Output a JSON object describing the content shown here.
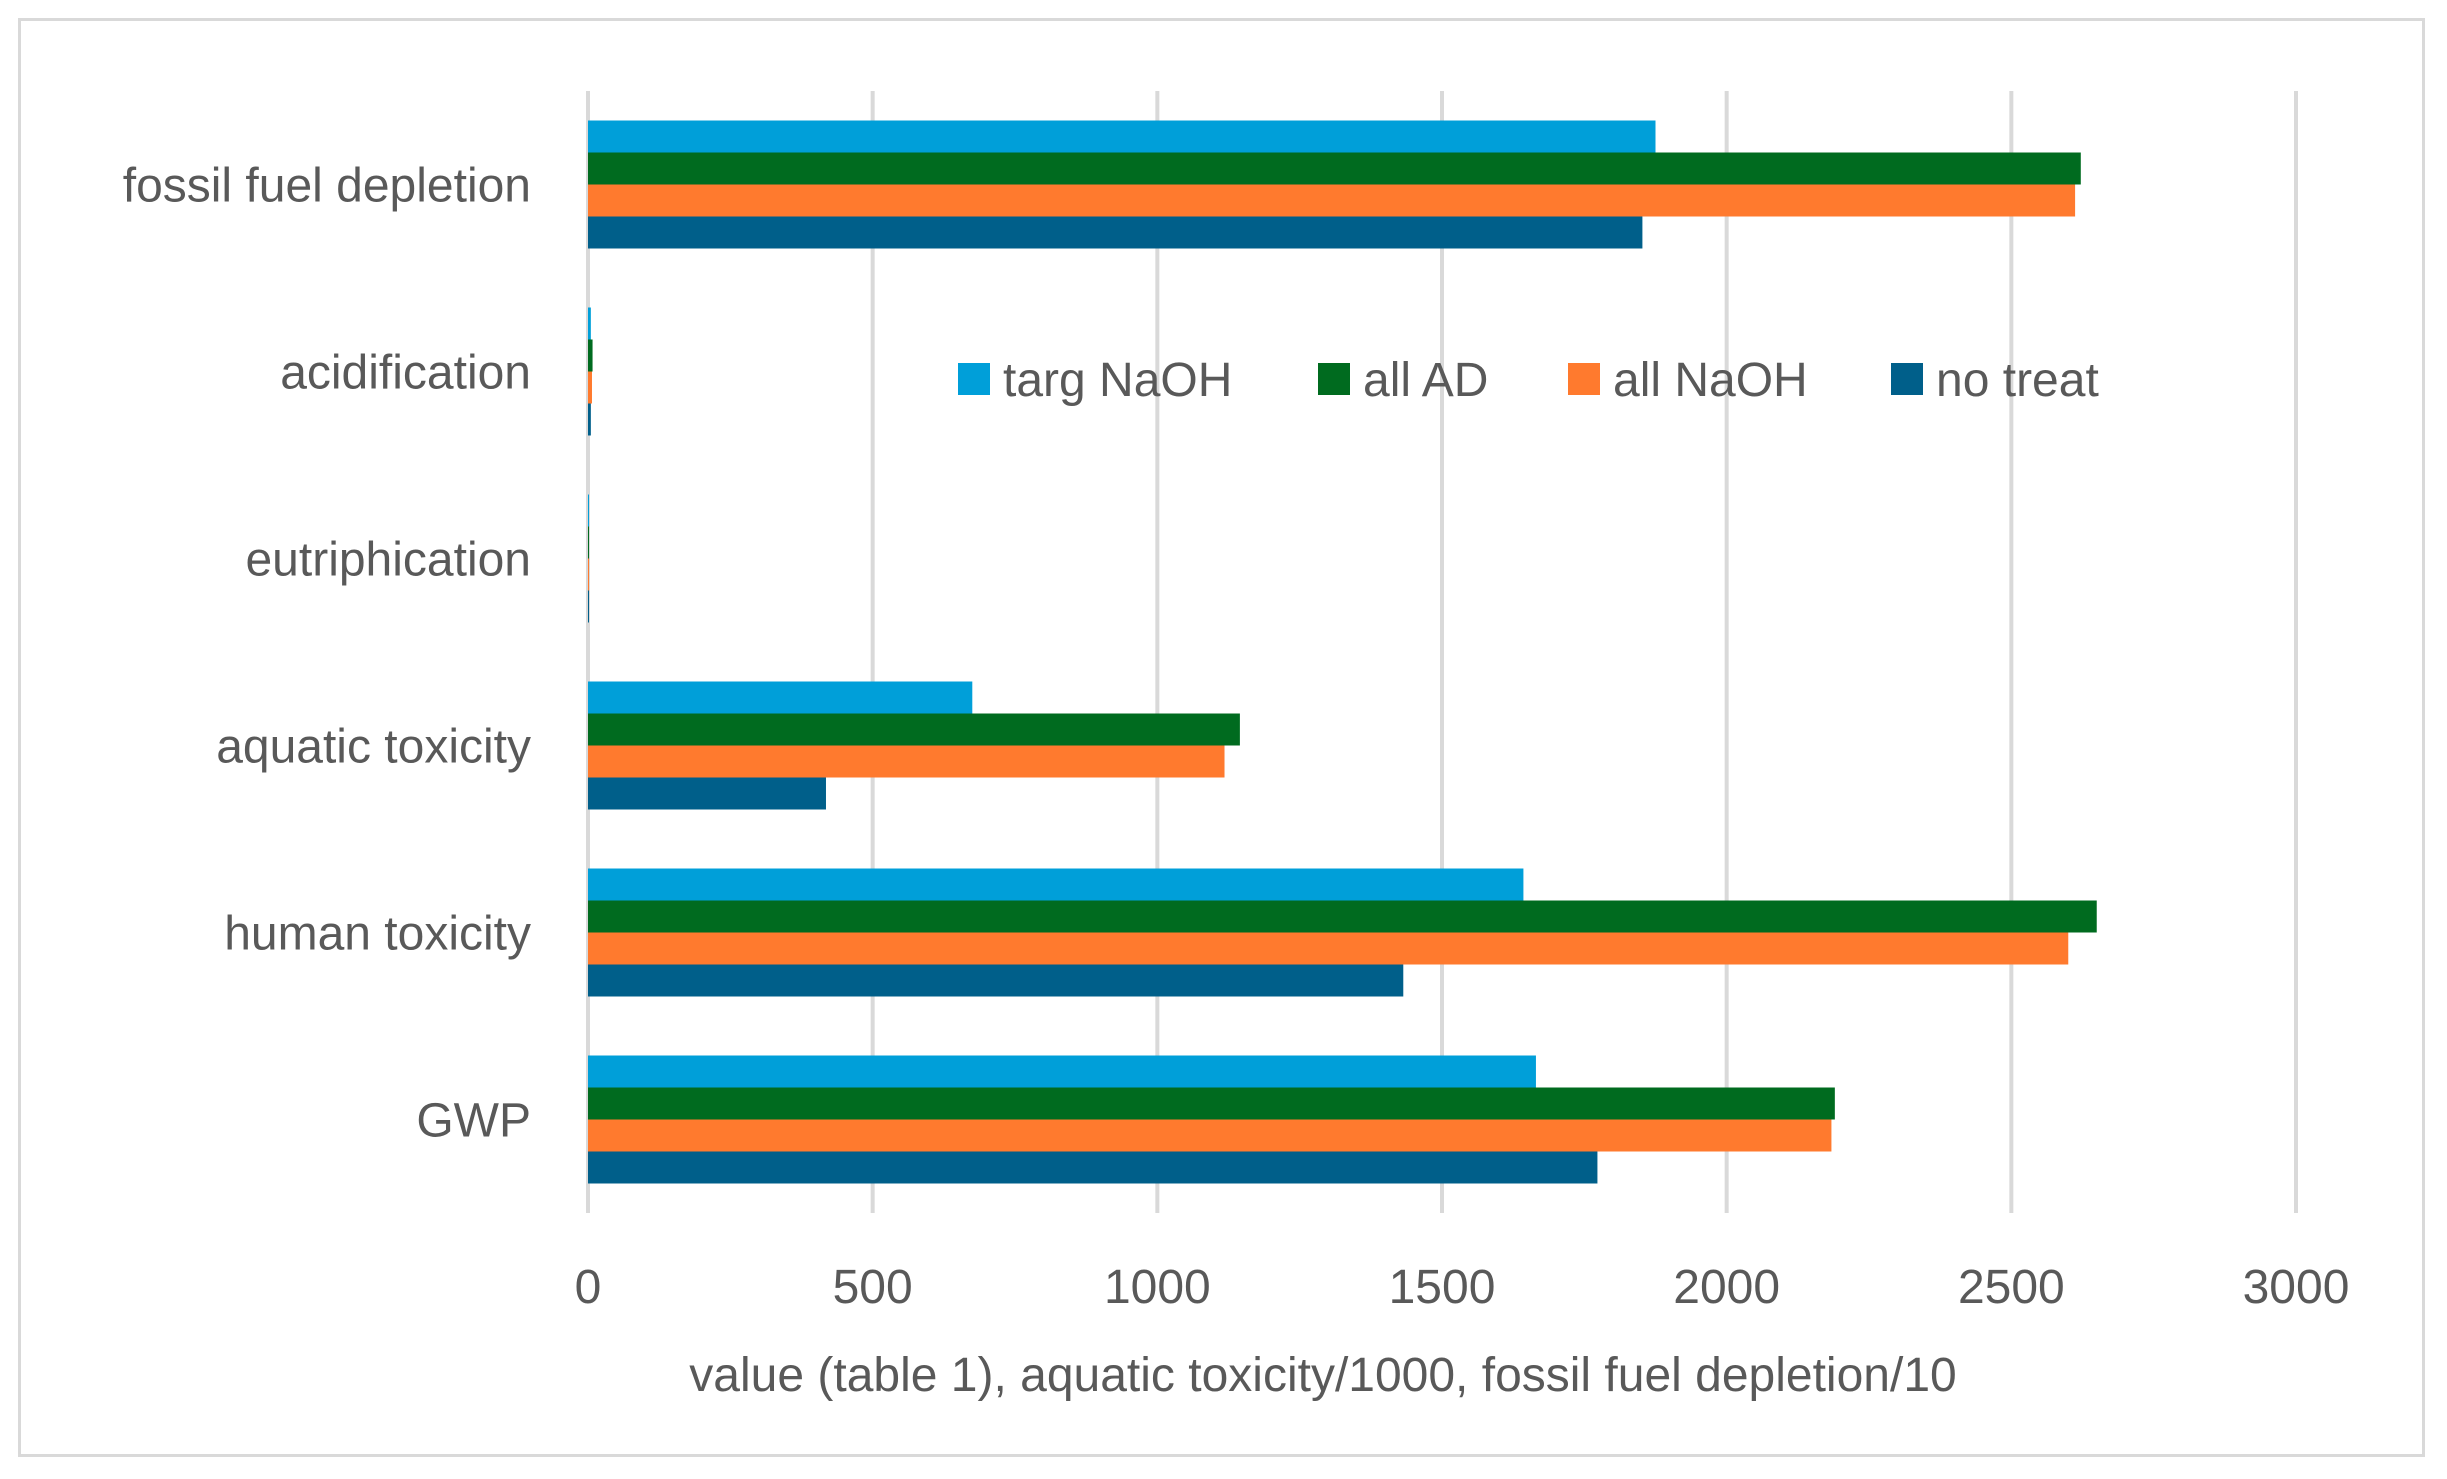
{
  "chart_data": {
    "type": "bar",
    "orientation": "horizontal",
    "title": "",
    "xlabel": "value (table 1), aquatic toxicity/1000, fossil fuel depletion/10",
    "ylabel": "",
    "xlim": [
      0,
      3000
    ],
    "xticks": [
      0,
      500,
      1000,
      1500,
      2000,
      2500,
      3000
    ],
    "xtick_labels": [
      "0",
      "500",
      "1000",
      "1500",
      "2000",
      "2500",
      "3000"
    ],
    "grid": "vertical",
    "legend_position": "inside-top-right",
    "categories": [
      "fossil fuel depletion",
      "acidification",
      "eutriphication",
      "aquatic toxicity",
      "human toxicity",
      "GWP"
    ],
    "series": [
      {
        "name": "targ NaOH",
        "color": "#009fd9",
        "values": [
          1875,
          5,
          1,
          675,
          1643,
          1665
        ]
      },
      {
        "name": "all AD",
        "color": "#006b1f",
        "values": [
          2622,
          8,
          1,
          1145,
          2650,
          2190
        ]
      },
      {
        "name": "all NaOH",
        "color": "#ff7a2e",
        "values": [
          2612,
          7,
          1,
          1118,
          2600,
          2184
        ]
      },
      {
        "name": "no treat",
        "color": "#005f8a",
        "values": [
          1852,
          5,
          1,
          418,
          1432,
          1773
        ]
      }
    ]
  }
}
